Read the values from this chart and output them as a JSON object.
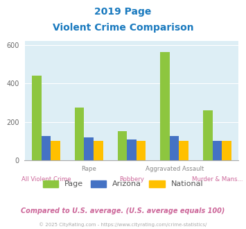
{
  "title_line1": "2019 Page",
  "title_line2": "Violent Crime Comparison",
  "categories": [
    "All Violent Crime",
    "Rape",
    "Robbery",
    "Aggravated Assault",
    "Murder & Mans..."
  ],
  "series": {
    "Page": [
      440,
      275,
      150,
      565,
      260
    ],
    "Arizona": [
      125,
      120,
      107,
      128,
      100
    ],
    "National": [
      100,
      100,
      100,
      100,
      100
    ]
  },
  "colors": {
    "Page": "#8dc63f",
    "Arizona": "#4472c4",
    "National": "#ffc000"
  },
  "ylim": [
    0,
    620
  ],
  "yticks": [
    0,
    200,
    400,
    600
  ],
  "label_upper_color": "#888888",
  "label_lower_color": "#cc6699",
  "title_color": "#1a7abf",
  "background_color": "#ddeef5",
  "legend_text_color": "#555555",
  "footer_text": "Compared to U.S. average. (U.S. average equals 100)",
  "footer_color": "#cc6699",
  "copyright_text": "© 2025 CityRating.com - https://www.cityrating.com/crime-statistics/",
  "copyright_color": "#aaaaaa"
}
